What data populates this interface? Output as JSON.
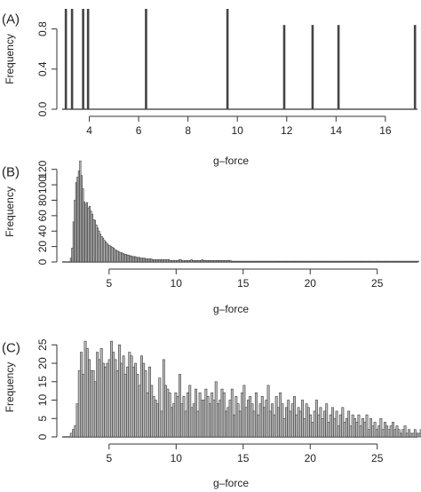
{
  "chart_data": [
    {
      "type": "bar",
      "panel_label": "(A)",
      "xlabel": "g–force",
      "ylabel": "Frequency",
      "xlim": [
        2.9,
        17.3
      ],
      "ylim": [
        0,
        1.0
      ],
      "x_ticks": [
        4,
        6,
        8,
        10,
        12,
        14,
        16
      ],
      "y_ticks": [
        0.0,
        0.4,
        0.8
      ],
      "grid": false,
      "x": [
        3.05,
        3.3,
        3.75,
        3.95,
        6.3,
        9.6,
        11.9,
        13.05,
        14.1,
        17.2
      ],
      "values": [
        1.0,
        1.0,
        1.0,
        1.0,
        1.0,
        1.0,
        0.84,
        0.84,
        0.84,
        0.84
      ]
    },
    {
      "type": "bar",
      "panel_label": "(B)",
      "xlabel": "g–force",
      "ylabel": "Frequency",
      "xlim": [
        1.5,
        28.0
      ],
      "ylim": [
        0,
        130
      ],
      "x_ticks": [
        5,
        10,
        15,
        20,
        25
      ],
      "y_ticks": [
        0,
        20,
        40,
        60,
        80,
        100,
        120
      ],
      "grid": false,
      "bin_start": 2.1,
      "bin_width": 0.1,
      "values": [
        5,
        18,
        52,
        80,
        103,
        110,
        118,
        131,
        112,
        95,
        78,
        75,
        77,
        70,
        72,
        66,
        62,
        55,
        54,
        48,
        44,
        40,
        36,
        33,
        31,
        28,
        26,
        24,
        22,
        21,
        20,
        19,
        18,
        16,
        15,
        14,
        13,
        12,
        12,
        11,
        10,
        10,
        9,
        9,
        8,
        8,
        7,
        7,
        7,
        6,
        6,
        6,
        5,
        5,
        5,
        5,
        4,
        4,
        4,
        4,
        4,
        3,
        3,
        3,
        3,
        3,
        3,
        3,
        3,
        3,
        3,
        3,
        3,
        3,
        2,
        2,
        2,
        2,
        2,
        2,
        2,
        3,
        3,
        2,
        2,
        2,
        2,
        2,
        2,
        2,
        3,
        2,
        2,
        2,
        2,
        2,
        2,
        2,
        3,
        2,
        2,
        2,
        2,
        2,
        2,
        2,
        2,
        2,
        2,
        2,
        2,
        2,
        2,
        2,
        2,
        2,
        2,
        2,
        2,
        2,
        1,
        1,
        1,
        1,
        1,
        1,
        1,
        1,
        1,
        1,
        1,
        1,
        1,
        1,
        1,
        1,
        1,
        1,
        1,
        1,
        1,
        1,
        1,
        1,
        1,
        1,
        1,
        1,
        1,
        1,
        1,
        1,
        1,
        1,
        1,
        1,
        1,
        1,
        1,
        1,
        1,
        1,
        1,
        1,
        1,
        1,
        1,
        1,
        1,
        1,
        1,
        1,
        1,
        1,
        1,
        1,
        1,
        1,
        1,
        1,
        1,
        1,
        1,
        1,
        1,
        1,
        1,
        1,
        1,
        1,
        1,
        1,
        1,
        1,
        1,
        1,
        1,
        1,
        1,
        1,
        1,
        1,
        1,
        1,
        1,
        1,
        1,
        1,
        1,
        1,
        1,
        1,
        1,
        1,
        1,
        1,
        1,
        1,
        1,
        1,
        1,
        1,
        1,
        1,
        1,
        1,
        1,
        1,
        1,
        1,
        1,
        1,
        1,
        1,
        1,
        1,
        1,
        1,
        1,
        1,
        1,
        1,
        1,
        1,
        1,
        1,
        1,
        1,
        1,
        1,
        1,
        1,
        1,
        1,
        1,
        1,
        1,
        1,
        1,
        1
      ]
    },
    {
      "type": "bar",
      "panel_label": "(C)",
      "xlabel": "g–force",
      "ylabel": "Frequency",
      "xlim": [
        1.5,
        28.0
      ],
      "ylim": [
        0,
        27
      ],
      "x_ticks": [
        5,
        10,
        15,
        20,
        25
      ],
      "y_ticks": [
        0,
        5,
        10,
        15,
        20,
        25
      ],
      "grid": false,
      "bin_start": 2.1,
      "bin_width": 0.15,
      "values": [
        1,
        2,
        3,
        9,
        18,
        23,
        17,
        26,
        24,
        21,
        18,
        18,
        15,
        23,
        21,
        24,
        20,
        19,
        20,
        21,
        26,
        23,
        21,
        18,
        25,
        20,
        22,
        17,
        19,
        23,
        22,
        19,
        20,
        17,
        14,
        22,
        20,
        18,
        12,
        19,
        14,
        11,
        10,
        9,
        16,
        7,
        21,
        14,
        13,
        12,
        8,
        9,
        12,
        11,
        17,
        9,
        11,
        7,
        12,
        14,
        8,
        9,
        13,
        7,
        12,
        10,
        10,
        13,
        11,
        9,
        12,
        10,
        15,
        9,
        10,
        13,
        12,
        7,
        8,
        10,
        13,
        6,
        11,
        9,
        7,
        12,
        14,
        8,
        10,
        11,
        9,
        7,
        12,
        6,
        9,
        11,
        8,
        10,
        14,
        7,
        9,
        6,
        11,
        8,
        12,
        9,
        5,
        8,
        10,
        7,
        9,
        11,
        6,
        8,
        7,
        10,
        5,
        9,
        8,
        6,
        4,
        7,
        10,
        6,
        8,
        5,
        7,
        9,
        4,
        6,
        8,
        5,
        7,
        3,
        6,
        8,
        4,
        5,
        7,
        3,
        6,
        5,
        4,
        6,
        3,
        5,
        4,
        6,
        2,
        5,
        3,
        4,
        2,
        3,
        5,
        2,
        4,
        3,
        2,
        3,
        4,
        2,
        3,
        2,
        1,
        2,
        3,
        1,
        2,
        1,
        1,
        2,
        1,
        1,
        2,
        1,
        1,
        1,
        2,
        1,
        1,
        1,
        1,
        1,
        2,
        1,
        1,
        1,
        1,
        1,
        1,
        1,
        1,
        1
      ]
    }
  ]
}
